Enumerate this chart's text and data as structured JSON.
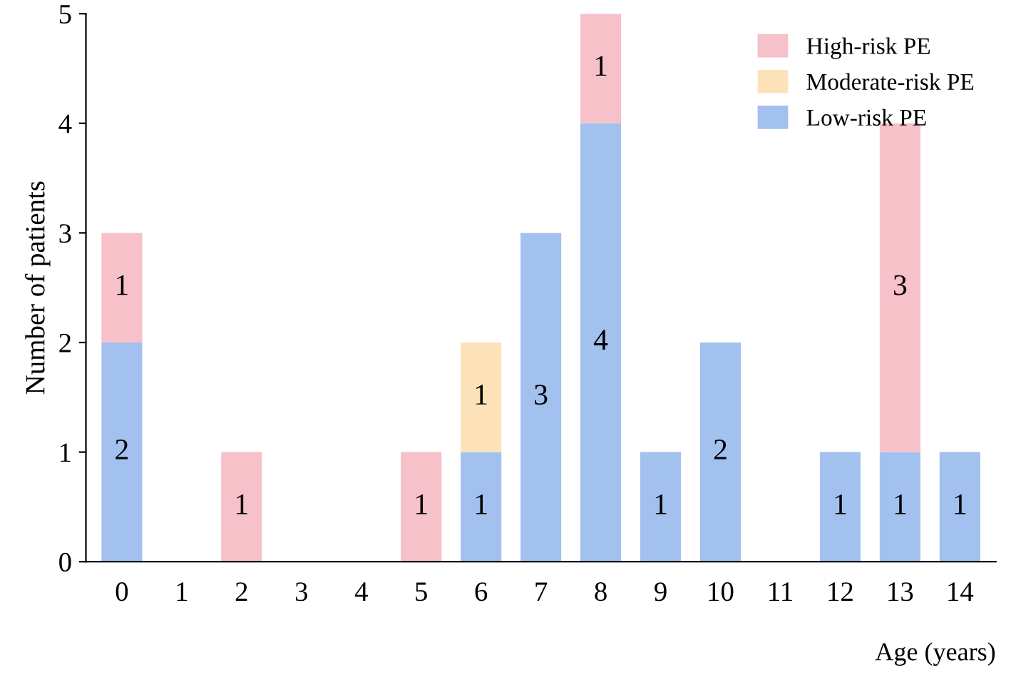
{
  "chart_data": {
    "type": "bar",
    "stacked": true,
    "xlabel": "Age (years)",
    "ylabel": "Number of patients",
    "categories": [
      "0",
      "1",
      "2",
      "3",
      "4",
      "5",
      "6",
      "7",
      "8",
      "9",
      "10",
      "11",
      "12",
      "13",
      "14"
    ],
    "series": [
      {
        "name": "Low-risk PE",
        "color": "#a3c1ee",
        "values": [
          2,
          null,
          null,
          null,
          null,
          null,
          1,
          3,
          4,
          1,
          2,
          null,
          1,
          1,
          1
        ]
      },
      {
        "name": "Moderate-risk PE",
        "color": "#fde2b9",
        "values": [
          null,
          null,
          null,
          null,
          null,
          null,
          1,
          null,
          null,
          null,
          null,
          null,
          null,
          null,
          null
        ]
      },
      {
        "name": "High-risk PE",
        "color": "#f6c1c9",
        "values": [
          1,
          null,
          1,
          null,
          null,
          1,
          null,
          null,
          1,
          null,
          null,
          null,
          null,
          3,
          null
        ]
      }
    ],
    "ylim": [
      0,
      5
    ],
    "yticks": [
      0,
      1,
      2,
      3,
      4,
      5
    ],
    "data_labels": true,
    "grid": false,
    "legend": "top right"
  }
}
